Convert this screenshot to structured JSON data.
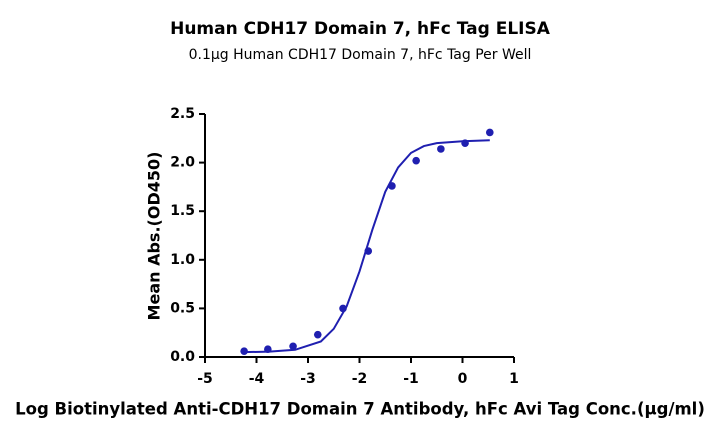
{
  "chart_data": {
    "type": "scatter",
    "title": "Human CDH17 Domain 7, hFc Tag ELISA",
    "subtitle": "0.1μg Human CDH17 Domain 7, hFc Tag Per Well",
    "x_label": "Log Biotinylated Anti-CDH17 Domain 7 Antibody, hFc Avi Tag Conc.(μg/ml)",
    "y_label": "Mean Abs.(OD450)",
    "xlim": [
      -5,
      1
    ],
    "xticks": [
      -5,
      -4,
      -3,
      -2,
      -1,
      0,
      1
    ],
    "ylim": [
      0,
      2.5
    ],
    "yticks": [
      {
        "value": 0,
        "label": "0.0"
      },
      0.5,
      {
        "value": 1,
        "label": "1.0"
      },
      1.5,
      {
        "value": 2,
        "label": "2.0"
      },
      2.5
    ],
    "series": [
      {
        "style": "markers",
        "color": "#1f1fb0",
        "x": [
          -4.24,
          -3.78,
          -3.29,
          -2.81,
          -2.32,
          -1.83,
          -1.37,
          -0.9,
          -0.42,
          0.05,
          0.53
        ],
        "values": [
          0.06,
          0.08,
          0.11,
          0.23,
          0.5,
          1.09,
          1.76,
          2.02,
          2.14,
          2.2,
          2.31
        ]
      },
      {
        "style": "line",
        "color": "#1f1fb0",
        "x": [
          -4.24,
          -3.75,
          -3.25,
          -2.75,
          -2.5,
          -2.25,
          -2,
          -1.75,
          -1.5,
          -1.25,
          -1,
          -0.75,
          -0.5,
          0,
          0.53
        ],
        "values": [
          0.05,
          0.055,
          0.074,
          0.16,
          0.29,
          0.52,
          0.88,
          1.31,
          1.7,
          1.95,
          2.1,
          2.17,
          2.2,
          2.22,
          2.23
        ]
      }
    ]
  }
}
